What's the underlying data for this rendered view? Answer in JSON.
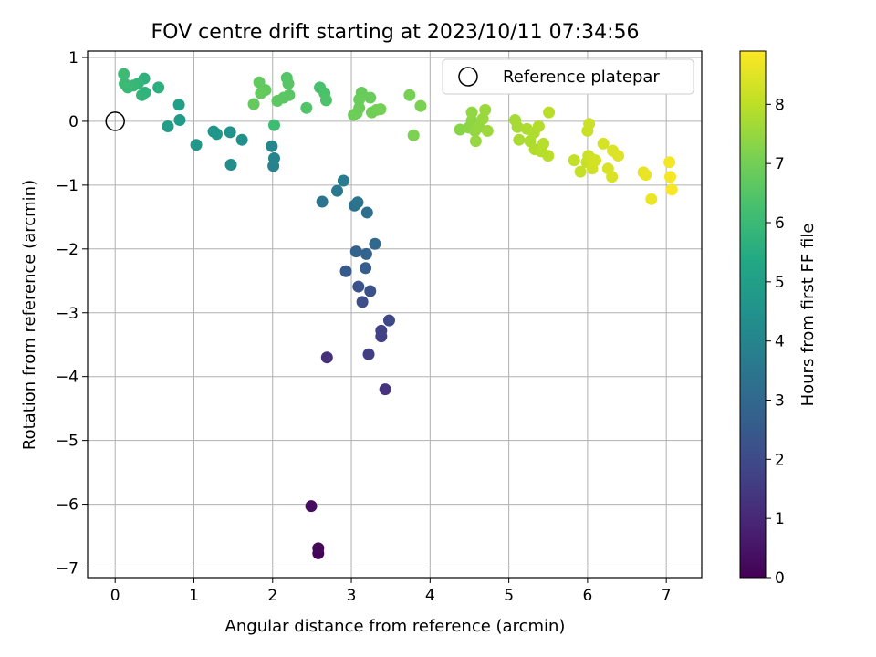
{
  "chart_data": {
    "type": "scatter",
    "title": "FOV centre drift starting at 2023/10/11 07:34:56",
    "xlabel": "Angular distance from reference (arcmin)",
    "ylabel": "Rotation from reference (arcmin)",
    "xlim": [
      -0.35,
      7.45
    ],
    "ylim": [
      -7.15,
      1.1
    ],
    "xticks": [
      0,
      1,
      2,
      3,
      4,
      5,
      6,
      7
    ],
    "xtick_labels": [
      "0",
      "1",
      "2",
      "3",
      "4",
      "5",
      "6",
      "7"
    ],
    "yticks": [
      1,
      0,
      -1,
      -2,
      -3,
      -4,
      -5,
      -6,
      -7
    ],
    "ytick_labels": [
      "1",
      "0",
      "−1",
      "−2",
      "−3",
      "−4",
      "−5",
      "−6",
      "−7"
    ],
    "grid": true,
    "legend": {
      "placement": "top-right",
      "entries": [
        "Reference platepar"
      ]
    },
    "reference_point": {
      "label": "Reference platepar",
      "x": 0,
      "y": 0
    },
    "colorbar": {
      "label": "Hours from first FF file",
      "colormap": "viridis",
      "range": [
        0,
        8.9
      ],
      "ticks": [
        0,
        1,
        2,
        3,
        4,
        5,
        6,
        7,
        8
      ],
      "tick_labels": [
        "0",
        "1",
        "2",
        "3",
        "4",
        "5",
        "6",
        "7",
        "8"
      ]
    },
    "points": [
      {
        "x": 2.58,
        "y": -6.77,
        "t": 0.05
      },
      {
        "x": 2.58,
        "y": -6.69,
        "t": 0.15
      },
      {
        "x": 2.49,
        "y": -6.03,
        "t": 0.3
      },
      {
        "x": 2.69,
        "y": -3.7,
        "t": 1.2
      },
      {
        "x": 3.43,
        "y": -4.2,
        "t": 1.3
      },
      {
        "x": 3.22,
        "y": -3.65,
        "t": 1.6
      },
      {
        "x": 3.38,
        "y": -3.37,
        "t": 1.7
      },
      {
        "x": 3.38,
        "y": -3.28,
        "t": 1.75
      },
      {
        "x": 3.48,
        "y": -3.12,
        "t": 1.9
      },
      {
        "x": 3.14,
        "y": -2.83,
        "t": 2.1
      },
      {
        "x": 3.24,
        "y": -2.66,
        "t": 2.2
      },
      {
        "x": 3.09,
        "y": -2.59,
        "t": 2.3
      },
      {
        "x": 2.93,
        "y": -2.35,
        "t": 2.5
      },
      {
        "x": 3.18,
        "y": -2.3,
        "t": 2.6
      },
      {
        "x": 3.06,
        "y": -2.04,
        "t": 2.8
      },
      {
        "x": 3.19,
        "y": -2.08,
        "t": 2.85
      },
      {
        "x": 3.3,
        "y": -1.92,
        "t": 3.0
      },
      {
        "x": 3.2,
        "y": -1.43,
        "t": 3.2
      },
      {
        "x": 3.04,
        "y": -1.32,
        "t": 3.3
      },
      {
        "x": 3.08,
        "y": -1.27,
        "t": 3.4
      },
      {
        "x": 2.63,
        "y": -1.26,
        "t": 3.5
      },
      {
        "x": 2.82,
        "y": -1.09,
        "t": 3.6
      },
      {
        "x": 2.9,
        "y": -0.93,
        "t": 3.7
      },
      {
        "x": 2.01,
        "y": -0.7,
        "t": 3.9
      },
      {
        "x": 2.02,
        "y": -0.58,
        "t": 4.0
      },
      {
        "x": 1.99,
        "y": -0.39,
        "t": 4.1
      },
      {
        "x": 1.47,
        "y": -0.68,
        "t": 4.3
      },
      {
        "x": 1.61,
        "y": -0.29,
        "t": 4.4
      },
      {
        "x": 1.46,
        "y": -0.17,
        "t": 4.5
      },
      {
        "x": 1.25,
        "y": -0.16,
        "t": 4.6
      },
      {
        "x": 1.29,
        "y": -0.2,
        "t": 4.65
      },
      {
        "x": 1.03,
        "y": -0.37,
        "t": 4.7
      },
      {
        "x": 0.82,
        "y": 0.02,
        "t": 4.8
      },
      {
        "x": 0.67,
        "y": -0.08,
        "t": 4.9
      },
      {
        "x": 0.81,
        "y": 0.26,
        "t": 5.0
      },
      {
        "x": 0.55,
        "y": 0.53,
        "t": 5.6
      },
      {
        "x": 0.37,
        "y": 0.67,
        "t": 5.7
      },
      {
        "x": 0.34,
        "y": 0.41,
        "t": 5.8
      },
      {
        "x": 0.38,
        "y": 0.45,
        "t": 5.75
      },
      {
        "x": 0.29,
        "y": 0.59,
        "t": 5.85
      },
      {
        "x": 0.23,
        "y": 0.56,
        "t": 5.9
      },
      {
        "x": 0.16,
        "y": 0.53,
        "t": 5.95
      },
      {
        "x": 0.12,
        "y": 0.59,
        "t": 6.0
      },
      {
        "x": 0.11,
        "y": 0.74,
        "t": 6.05
      },
      {
        "x": 2.02,
        "y": -0.06,
        "t": 6.1
      },
      {
        "x": 2.6,
        "y": 0.53,
        "t": 6.3
      },
      {
        "x": 2.66,
        "y": 0.44,
        "t": 6.35
      },
      {
        "x": 2.68,
        "y": 0.33,
        "t": 6.4
      },
      {
        "x": 2.43,
        "y": 0.21,
        "t": 6.45
      },
      {
        "x": 2.18,
        "y": 0.68,
        "t": 6.5
      },
      {
        "x": 2.2,
        "y": 0.59,
        "t": 6.55
      },
      {
        "x": 2.21,
        "y": 0.41,
        "t": 6.6
      },
      {
        "x": 2.14,
        "y": 0.37,
        "t": 6.62
      },
      {
        "x": 2.06,
        "y": 0.32,
        "t": 6.65
      },
      {
        "x": 1.83,
        "y": 0.61,
        "t": 6.7
      },
      {
        "x": 1.91,
        "y": 0.49,
        "t": 6.72
      },
      {
        "x": 1.85,
        "y": 0.44,
        "t": 6.75
      },
      {
        "x": 1.76,
        "y": 0.27,
        "t": 6.78
      },
      {
        "x": 3.13,
        "y": 0.45,
        "t": 6.8
      },
      {
        "x": 3.24,
        "y": 0.37,
        "t": 6.82
      },
      {
        "x": 3.1,
        "y": 0.34,
        "t": 6.85
      },
      {
        "x": 3.1,
        "y": 0.21,
        "t": 6.88
      },
      {
        "x": 3.03,
        "y": 0.1,
        "t": 6.9
      },
      {
        "x": 3.07,
        "y": 0.13,
        "t": 6.92
      },
      {
        "x": 3.26,
        "y": 0.14,
        "t": 6.95
      },
      {
        "x": 3.32,
        "y": 0.18,
        "t": 6.97
      },
      {
        "x": 3.37,
        "y": 0.19,
        "t": 7.0
      },
      {
        "x": 3.74,
        "y": 0.41,
        "t": 7.05
      },
      {
        "x": 3.88,
        "y": 0.24,
        "t": 7.1
      },
      {
        "x": 3.79,
        "y": -0.22,
        "t": 7.15
      },
      {
        "x": 4.38,
        "y": -0.13,
        "t": 7.3
      },
      {
        "x": 4.49,
        "y": -0.1,
        "t": 7.35
      },
      {
        "x": 4.53,
        "y": 0.01,
        "t": 7.4
      },
      {
        "x": 4.53,
        "y": 0.14,
        "t": 7.42
      },
      {
        "x": 4.57,
        "y": -0.15,
        "t": 7.45
      },
      {
        "x": 4.62,
        "y": -0.09,
        "t": 7.48
      },
      {
        "x": 4.58,
        "y": -0.31,
        "t": 7.5
      },
      {
        "x": 4.67,
        "y": 0.04,
        "t": 7.52
      },
      {
        "x": 4.7,
        "y": 0.18,
        "t": 7.55
      },
      {
        "x": 4.73,
        "y": -0.15,
        "t": 7.58
      },
      {
        "x": 5.08,
        "y": 0.02,
        "t": 7.7
      },
      {
        "x": 5.11,
        "y": -0.09,
        "t": 7.72
      },
      {
        "x": 5.13,
        "y": -0.29,
        "t": 7.75
      },
      {
        "x": 5.23,
        "y": -0.12,
        "t": 7.78
      },
      {
        "x": 5.27,
        "y": -0.31,
        "t": 7.8
      },
      {
        "x": 5.32,
        "y": -0.18,
        "t": 7.82
      },
      {
        "x": 5.33,
        "y": -0.44,
        "t": 7.85
      },
      {
        "x": 5.38,
        "y": -0.08,
        "t": 7.87
      },
      {
        "x": 5.41,
        "y": -0.47,
        "t": 7.9
      },
      {
        "x": 5.44,
        "y": -0.35,
        "t": 7.92
      },
      {
        "x": 5.5,
        "y": -0.54,
        "t": 7.95
      },
      {
        "x": 5.51,
        "y": 0.14,
        "t": 7.97
      },
      {
        "x": 5.83,
        "y": -0.61,
        "t": 8.1
      },
      {
        "x": 5.91,
        "y": -0.79,
        "t": 8.12
      },
      {
        "x": 5.99,
        "y": -0.64,
        "t": 8.15
      },
      {
        "x": 6.0,
        "y": -0.15,
        "t": 8.17
      },
      {
        "x": 6.01,
        "y": -0.54,
        "t": 8.2
      },
      {
        "x": 6.02,
        "y": -0.04,
        "t": 8.22
      },
      {
        "x": 6.04,
        "y": -0.58,
        "t": 8.25
      },
      {
        "x": 6.06,
        "y": -0.74,
        "t": 8.27
      },
      {
        "x": 6.1,
        "y": -0.61,
        "t": 8.3
      },
      {
        "x": 6.2,
        "y": -0.35,
        "t": 8.35
      },
      {
        "x": 6.26,
        "y": -0.74,
        "t": 8.38
      },
      {
        "x": 6.31,
        "y": -0.87,
        "t": 8.4
      },
      {
        "x": 6.32,
        "y": -0.46,
        "t": 8.42
      },
      {
        "x": 6.39,
        "y": -0.54,
        "t": 8.45
      },
      {
        "x": 6.71,
        "y": -0.8,
        "t": 8.6
      },
      {
        "x": 6.74,
        "y": -0.84,
        "t": 8.62
      },
      {
        "x": 6.81,
        "y": -1.22,
        "t": 8.65
      },
      {
        "x": 7.04,
        "y": -0.64,
        "t": 8.75
      },
      {
        "x": 7.05,
        "y": -0.87,
        "t": 8.8
      },
      {
        "x": 7.07,
        "y": -1.07,
        "t": 8.85
      }
    ]
  }
}
